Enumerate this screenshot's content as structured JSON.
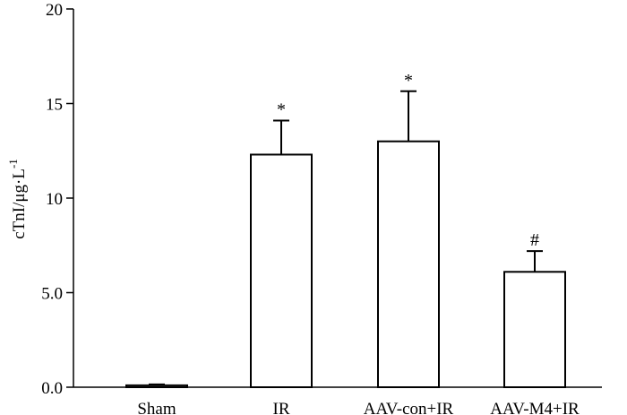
{
  "chart_data": {
    "type": "bar",
    "categories": [
      "Sham",
      "IR",
      "AAV-con+IR",
      "AAV-M4+IR"
    ],
    "values": [
      0.1,
      12.3,
      13.0,
      6.1
    ],
    "error": [
      0.05,
      1.8,
      2.65,
      1.1
    ],
    "annotations": [
      "",
      "*",
      "*",
      "#"
    ],
    "ylabel": "cTnI/μg·L",
    "ylabel_superscript": "-1",
    "xlabel": "",
    "ylim": [
      0,
      20
    ],
    "yticks": [
      0,
      5,
      10,
      15,
      20
    ],
    "ytick_labels": [
      "0.0",
      "5.0",
      "10",
      "15",
      "20"
    ],
    "grid": false,
    "legend": "none",
    "bar_fill": "#ffffff",
    "bar_stroke": "#000000"
  }
}
